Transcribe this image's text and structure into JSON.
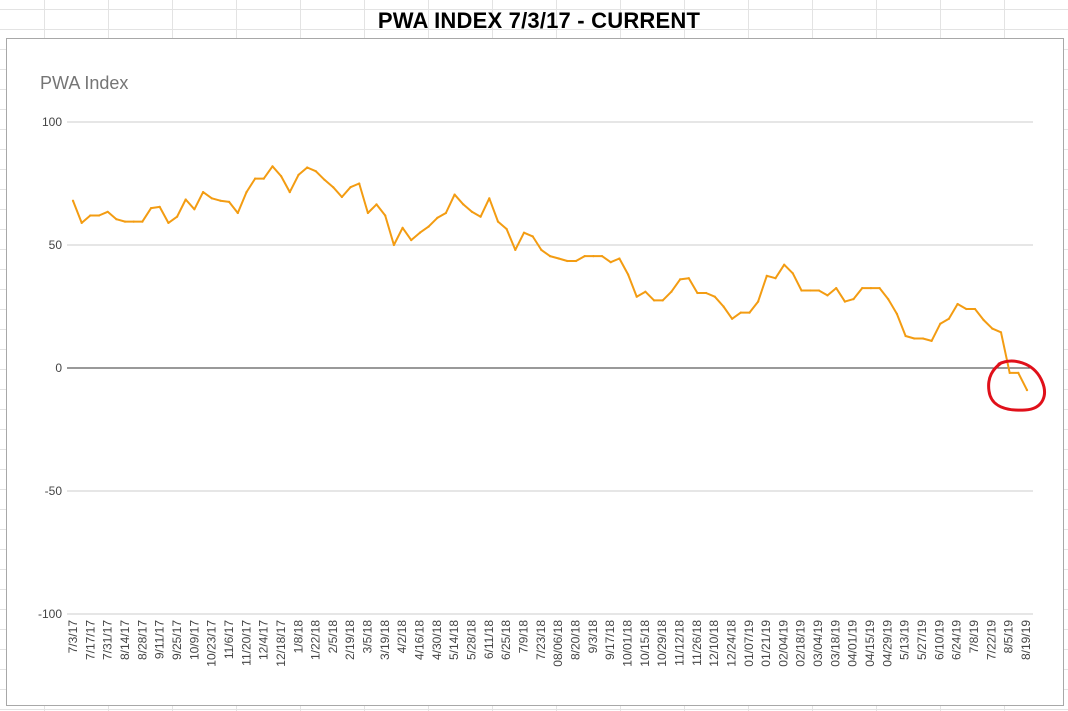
{
  "page": {
    "title": "PWA INDEX 7/3/17 - CURRENT"
  },
  "colors": {
    "line": "#f39c12",
    "annotation": "#e0101a",
    "grid": "#cccccc",
    "zero_line": "#333333"
  },
  "chart_data": {
    "type": "line",
    "title": "PWA Index",
    "xlabel": "",
    "ylabel": "",
    "ylim": [
      -100,
      100
    ],
    "y_ticks": [
      100,
      50,
      0,
      -50,
      -100
    ],
    "grid": true,
    "legend": "none",
    "annotation": "red circle around the most recent values below zero",
    "x_tick_labels": [
      "7/3/17",
      "7/17/17",
      "7/31/17",
      "8/14/17",
      "8/28/17",
      "9/11/17",
      "9/25/17",
      "10/9/17",
      "10/23/17",
      "11/6/17",
      "11/20/17",
      "12/4/17",
      "12/18/17",
      "1/8/18",
      "1/22/18",
      "2/5/18",
      "2/19/18",
      "3/5/18",
      "3/19/18",
      "4/2/18",
      "4/16/18",
      "4/30/18",
      "5/14/18",
      "5/28/18",
      "6/11/18",
      "6/25/18",
      "7/9/18",
      "7/23/18",
      "08/06/18",
      "8/20/18",
      "9/3/18",
      "9/17/18",
      "10/01/18",
      "10/15/18",
      "10/29/18",
      "11/12/18",
      "11/26/18",
      "12/10/18",
      "12/24/18",
      "01/07/19",
      "01/21/19",
      "02/04/19",
      "02/18/19",
      "03/04/19",
      "03/18/19",
      "04/01/19",
      "04/15/19",
      "04/29/19",
      "5/13/19",
      "5/27/19",
      "6/10/19",
      "6/24/19",
      "7/8/19",
      "7/22/19",
      "8/5/19",
      "8/19/19"
    ],
    "series": [
      {
        "name": "",
        "values": [
          68,
          59,
          62,
          62,
          63.5,
          60.5,
          59.5,
          59.5,
          59.5,
          65,
          65.5,
          59,
          61.5,
          68.5,
          64.5,
          71.5,
          69,
          68,
          67.5,
          63,
          71.5,
          77,
          77,
          82,
          78,
          71.5,
          78.5,
          81.5,
          80,
          76.5,
          73.5,
          69.5,
          73.5,
          75,
          63,
          66.5,
          62,
          50,
          57,
          52,
          55,
          57.5,
          61,
          63,
          70.5,
          66.5,
          63.5,
          61.5,
          69,
          59.5,
          56.5,
          48,
          55,
          53.5,
          48,
          45.5,
          44.5,
          43.5,
          43.5,
          45.5,
          45.5,
          45.5,
          43,
          44.5,
          38,
          29,
          31,
          27.5,
          27.5,
          31,
          36,
          36.5,
          30.5,
          30.5,
          29,
          25,
          20,
          22.5,
          22.5,
          27,
          37.5,
          36.5,
          42,
          38.5,
          31.5,
          31.5,
          31.5,
          29.5,
          32.5,
          27,
          28,
          32.5,
          32.5,
          32.5,
          28,
          22,
          13,
          12,
          12,
          11,
          18,
          20,
          26,
          24,
          24,
          19.5,
          16,
          14.5,
          -2,
          -2,
          -9
        ]
      }
    ]
  }
}
